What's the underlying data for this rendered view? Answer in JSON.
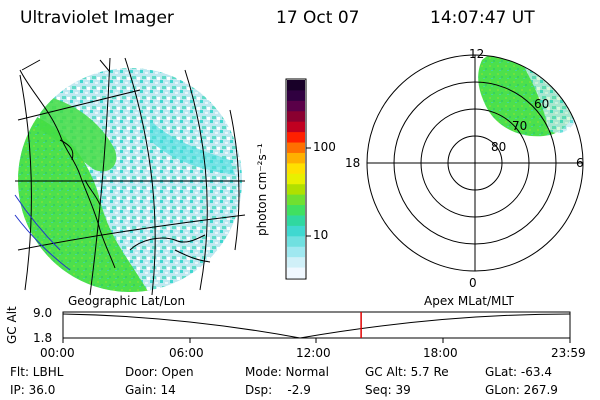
{
  "header": {
    "instrument": "Ultraviolet Imager",
    "date": "17 Oct 07",
    "time": "14:07:47 UT"
  },
  "colorbar": {
    "unit_label": "photon cm⁻²s⁻¹",
    "tick_100": "100",
    "tick_10": "10",
    "colors_top_to_bottom": [
      "#180028",
      "#300040",
      "#5a0048",
      "#8a0030",
      "#c00020",
      "#ff2000",
      "#ff7000",
      "#ffb000",
      "#ffe000",
      "#e8f000",
      "#b0e000",
      "#70e030",
      "#40e060",
      "#30d8a0",
      "#40d8d0",
      "#70e0e0",
      "#a0e8f0",
      "#d0f0f8",
      "#f0f8ff"
    ]
  },
  "polar_plot": {
    "mlt_labels": {
      "top": "12",
      "left": "18",
      "right": "6",
      "bottom": "0"
    },
    "lat_labels": [
      "60",
      "70",
      "80"
    ]
  },
  "timeline": {
    "ylabel": "GC Alt",
    "ymax": "9.0",
    "ymin": "1.8",
    "left_caption": "Geographic Lat/Lon",
    "right_caption": "Apex MLat/MLT",
    "xticks": [
      "00:00",
      "06:00",
      "12:00",
      "18:00",
      "23:59"
    ],
    "current_time_fraction": 0.588
  },
  "status": {
    "flt": "Flt: LBHL",
    "ip": "IP: 36.0",
    "door": "Door: Open",
    "gain": "Gain: 14",
    "mode": "Mode: Normal",
    "dsp": "Dsp:    -2.9",
    "gcalt": "GC Alt: 5.7 Re",
    "seq": "Seq: 39",
    "glat": "GLat: -63.4",
    "glon": "GLon: 267.9"
  },
  "colors": {
    "aurora_green": "#44dd44",
    "aurora_cyan": "#44dddd",
    "time_marker": "#e00000",
    "boundary_blue": "#2233cc"
  }
}
